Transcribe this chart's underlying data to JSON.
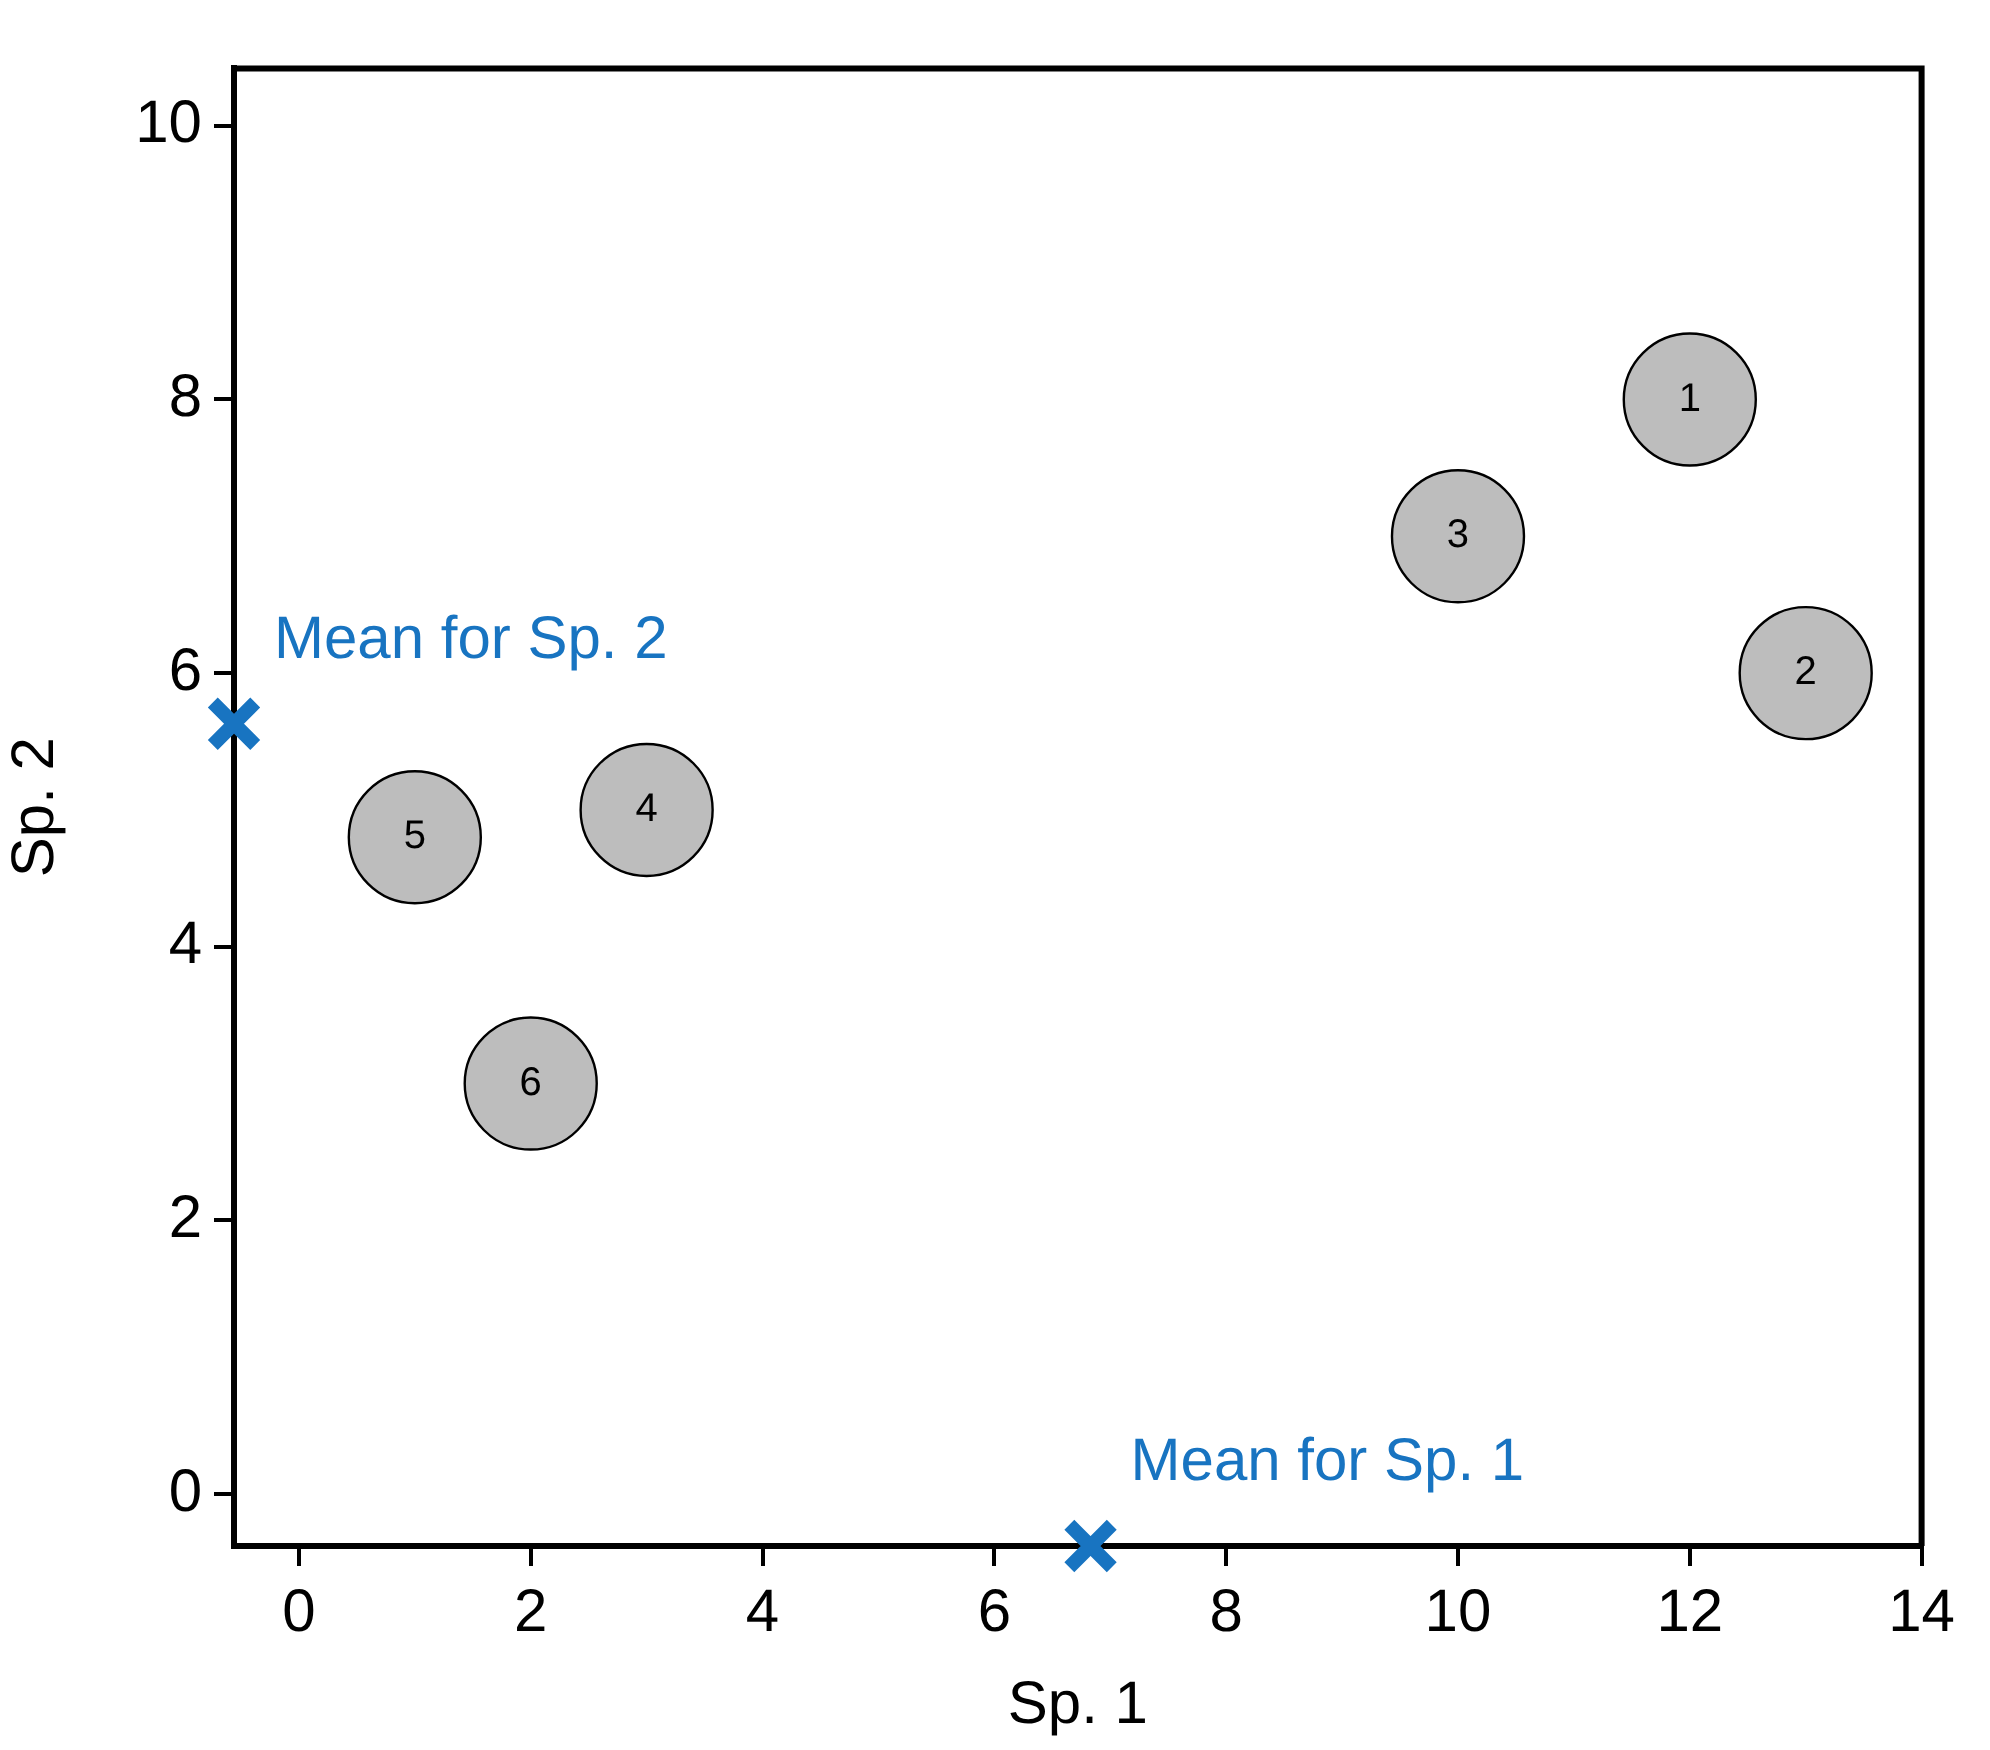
{
  "chart_data": {
    "type": "scatter",
    "xlabel": "Sp. 1",
    "ylabel": "Sp. 2",
    "xlim": [
      -0.56,
      14
    ],
    "xticks": [
      0,
      2,
      4,
      6,
      8,
      10,
      12,
      14
    ],
    "ylim": [
      -0.38,
      10.42
    ],
    "yticks": [
      0,
      2,
      4,
      6,
      8,
      10
    ],
    "grid": false,
    "legend": false,
    "series": [
      {
        "name": "1",
        "color": "#bdbdbd",
        "marker": "circle",
        "x": [
          12
        ],
        "values": [
          8
        ]
      },
      {
        "name": "2",
        "color": "#bdbdbd",
        "marker": "circle",
        "x": [
          13
        ],
        "values": [
          6
        ]
      },
      {
        "name": "3",
        "color": "#bdbdbd",
        "marker": "circle",
        "x": [
          10
        ],
        "values": [
          7
        ]
      },
      {
        "name": "4",
        "color": "#bdbdbd",
        "marker": "circle",
        "x": [
          3
        ],
        "values": [
          5
        ]
      },
      {
        "name": "5",
        "color": "#bdbdbd",
        "marker": "circle",
        "x": [
          1
        ],
        "values": [
          4.8
        ]
      },
      {
        "name": "6",
        "color": "#bdbdbd",
        "marker": "circle",
        "x": [
          2
        ],
        "values": [
          3
        ]
      },
      {
        "color": "#1874c1",
        "marker": "cross",
        "x": [
          6.83,
          -0.56
        ],
        "values": [
          -0.38,
          5.63
        ]
      }
    ],
    "annotations": [
      {
        "text": "Mean for Sp. 1",
        "x": 6.83,
        "y": -0.38
      },
      {
        "text": "Mean for Sp. 2",
        "x": -0.56,
        "y": 5.63
      }
    ]
  }
}
